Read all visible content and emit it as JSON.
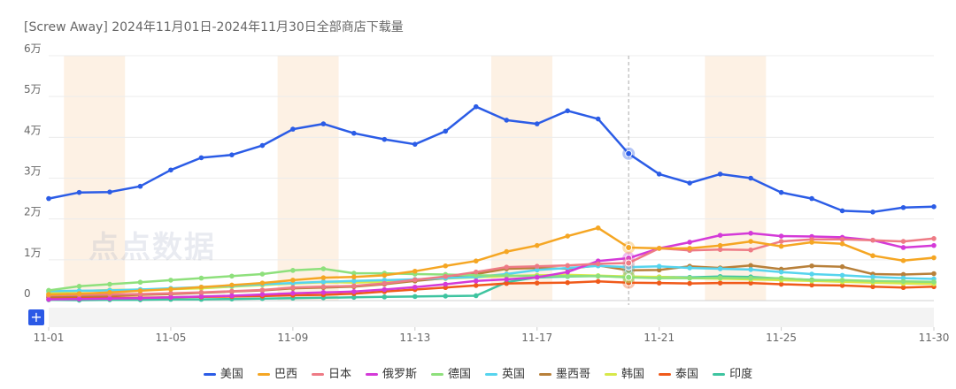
{
  "title": "[Screw Away] 2024年11月01日-2024年11月30日全部商店下载量",
  "watermark_text": "点点数据",
  "add_button": "+",
  "chart_data": {
    "type": "line",
    "title": "[Screw Away] 2024年11月01日-2024年11月30日全部商店下载量",
    "x": [
      "11-01",
      "11-02",
      "11-03",
      "11-04",
      "11-05",
      "11-06",
      "11-07",
      "11-08",
      "11-09",
      "11-10",
      "11-11",
      "11-12",
      "11-13",
      "11-14",
      "11-15",
      "11-16",
      "11-17",
      "11-18",
      "11-19",
      "11-20",
      "11-21",
      "11-22",
      "11-23",
      "11-24",
      "11-25",
      "11-26",
      "11-27",
      "11-28",
      "11-29",
      "11-30"
    ],
    "x_tick_labels": [
      "11-01",
      "11-05",
      "11-09",
      "11-13",
      "11-17",
      "11-21",
      "11-25",
      "11-30"
    ],
    "x_tick_index": [
      0,
      4,
      8,
      12,
      16,
      20,
      24,
      29
    ],
    "y_tick_labels": [
      "0",
      "1万",
      "2万",
      "3万",
      "4万",
      "5万",
      "6万"
    ],
    "ylim": [
      0,
      60000
    ],
    "y_ticks": [
      0,
      10000,
      20000,
      30000,
      40000,
      50000,
      60000
    ],
    "weekend_bands": [
      [
        1,
        2
      ],
      [
        8,
        9
      ],
      [
        15,
        16
      ],
      [
        22,
        23
      ]
    ],
    "hover_index": 19,
    "grid": true,
    "legend_position": "bottom",
    "series": [
      {
        "name": "美国",
        "color": "#2b5ce6",
        "values": [
          25000,
          26500,
          26600,
          28000,
          32000,
          35000,
          35700,
          38000,
          42000,
          43300,
          41000,
          39500,
          38300,
          41500,
          47500,
          44200,
          43300,
          46500,
          44500,
          36000,
          31000,
          28800,
          31000,
          30000,
          26500,
          25000,
          22000,
          21700,
          22800,
          23000
        ]
      },
      {
        "name": "巴西",
        "color": "#f5a623",
        "values": [
          1500,
          1700,
          2000,
          2400,
          2800,
          3300,
          3800,
          4300,
          5000,
          5600,
          5800,
          6200,
          7200,
          8500,
          9700,
          12000,
          13500,
          15800,
          17800,
          13000,
          12800,
          12800,
          13500,
          14500,
          13300,
          14300,
          13900,
          11000,
          9800,
          10500
        ]
      },
      {
        "name": "日本",
        "color": "#ee7b85",
        "values": [
          1300,
          1400,
          1500,
          1600,
          1800,
          2000,
          2300,
          2600,
          3200,
          3400,
          3600,
          4200,
          5100,
          5900,
          7000,
          8200,
          8400,
          8600,
          9000,
          9200,
          12800,
          12300,
          12500,
          12400,
          14500,
          15000,
          15000,
          14800,
          14500,
          15200
        ]
      },
      {
        "name": "俄罗斯",
        "color": "#d43ad8",
        "values": [
          300,
          400,
          500,
          600,
          800,
          1000,
          1200,
          1500,
          1800,
          2000,
          2200,
          2700,
          3300,
          4000,
          4800,
          5200,
          5700,
          7000,
          9700,
          10400,
          12800,
          14300,
          16000,
          16500,
          15800,
          15700,
          15500,
          14800,
          13000,
          13500
        ]
      },
      {
        "name": "德国",
        "color": "#8ee07c",
        "values": [
          2500,
          3500,
          4000,
          4500,
          5000,
          5500,
          6000,
          6500,
          7400,
          7800,
          6700,
          6700,
          6500,
          6400,
          6200,
          6100,
          6000,
          6000,
          6000,
          5700,
          5500,
          5500,
          5600,
          5500,
          5500,
          5000,
          5000,
          4800,
          4700,
          4600
        ]
      },
      {
        "name": "英国",
        "color": "#56d4ee",
        "values": [
          2300,
          2400,
          2500,
          2700,
          3000,
          3300,
          3600,
          4000,
          4300,
          4600,
          4800,
          5000,
          5200,
          5500,
          5800,
          6500,
          7500,
          8000,
          8500,
          8200,
          8400,
          8000,
          7800,
          7600,
          7000,
          6500,
          6200,
          5800,
          5500,
          5300
        ]
      },
      {
        "name": "墨西哥",
        "color": "#b8803a",
        "values": [
          1000,
          1100,
          1200,
          1400,
          1600,
          1900,
          2200,
          2500,
          3000,
          3200,
          3400,
          4000,
          4800,
          5500,
          6500,
          7800,
          8000,
          7800,
          8600,
          7400,
          7500,
          8400,
          8000,
          8600,
          7700,
          8500,
          8300,
          6500,
          6400,
          6600
        ]
      },
      {
        "name": "韩国",
        "color": "#d7e84a",
        "values": [
          1800,
          2300,
          2600,
          2700,
          2800,
          3000,
          3400,
          3800,
          4200,
          4500,
          4400,
          4600,
          5000,
          5400,
          5700,
          6000,
          6200,
          6300,
          6100,
          5900,
          5800,
          5500,
          5400,
          5200,
          5000,
          4800,
          4600,
          4400,
          4200,
          4100
        ]
      },
      {
        "name": "泰国",
        "color": "#f05a1a",
        "values": [
          700,
          700,
          700,
          700,
          800,
          900,
          1000,
          1100,
          1300,
          1400,
          1700,
          2200,
          2700,
          3200,
          3700,
          4200,
          4300,
          4400,
          4700,
          4400,
          4300,
          4200,
          4300,
          4300,
          4000,
          3800,
          3700,
          3400,
          3200,
          3400
        ]
      },
      {
        "name": "印度",
        "color": "#3ec4a0",
        "values": [
          200,
          100,
          200,
          200,
          300,
          300,
          400,
          500,
          600,
          700,
          800,
          900,
          1000,
          1100,
          1200,
          4500,
          5700,
          5900,
          6000,
          5800,
          5800,
          5700,
          5900,
          5800,
          5400,
          5100,
          4700,
          4500,
          4300,
          4500
        ]
      }
    ]
  }
}
